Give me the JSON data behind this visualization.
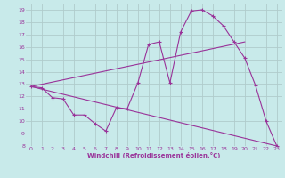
{
  "bg_color": "#c8eaea",
  "line_color": "#993399",
  "grid_color": "#b0cccc",
  "xlabel": "Windchill (Refroidissement éolien,°C)",
  "xlabel_color": "#993399",
  "xlim": [
    -0.5,
    23.5
  ],
  "ylim": [
    8,
    19.5
  ],
  "yticks": [
    8,
    9,
    10,
    11,
    12,
    13,
    14,
    15,
    16,
    17,
    18,
    19
  ],
  "xticks": [
    0,
    1,
    2,
    3,
    4,
    5,
    6,
    7,
    8,
    9,
    10,
    11,
    12,
    13,
    14,
    15,
    16,
    17,
    18,
    19,
    20,
    21,
    22,
    23
  ],
  "curve1_x": [
    0,
    1,
    2,
    3,
    4,
    5,
    6,
    7,
    8,
    9,
    10,
    11,
    12,
    13,
    14,
    15,
    16,
    17,
    18,
    19,
    20,
    21,
    22,
    23
  ],
  "curve1_y": [
    12.8,
    12.7,
    11.9,
    11.8,
    10.5,
    10.5,
    9.8,
    9.2,
    11.1,
    11.0,
    13.1,
    16.2,
    16.4,
    13.1,
    17.2,
    18.9,
    19.0,
    18.5,
    17.7,
    16.4,
    15.1,
    12.9,
    10.0,
    8.0
  ],
  "curve2_x": [
    0,
    20
  ],
  "curve2_y": [
    12.8,
    16.4
  ],
  "curve3_x": [
    0,
    23
  ],
  "curve3_y": [
    12.8,
    8.0
  ]
}
